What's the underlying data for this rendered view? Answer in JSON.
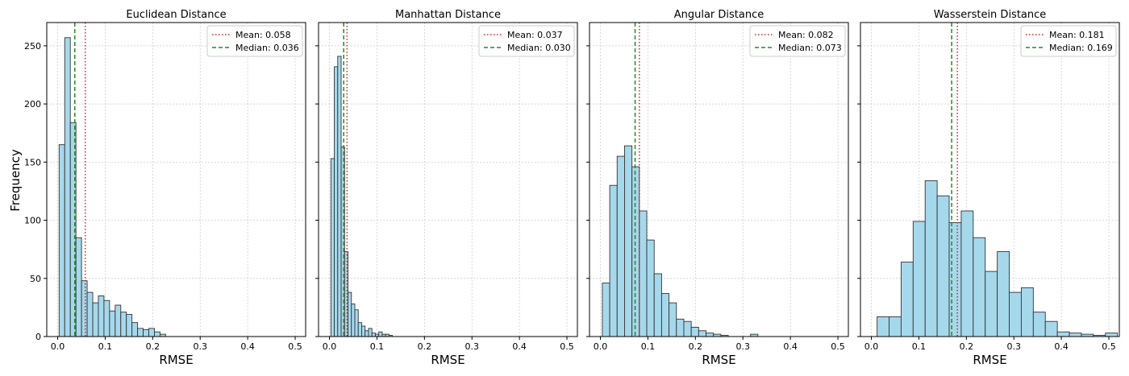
{
  "chart_data": [
    {
      "type": "bar",
      "title": "Euclidean Distance",
      "xlabel": "RMSE",
      "ylabel": "Frequency",
      "xlim": [
        -0.023,
        0.522
      ],
      "ylim": [
        0,
        270
      ],
      "xticks": [
        0.0,
        0.1,
        0.2,
        0.3,
        0.4,
        0.5
      ],
      "yticks": [
        0,
        50,
        100,
        150,
        200,
        250
      ],
      "bin_start": 0.003,
      "bin_width": 0.0118,
      "values": [
        165,
        257,
        184,
        85,
        48,
        38,
        29,
        35,
        31,
        22,
        27,
        21,
        19,
        12,
        7,
        6,
        7,
        4,
        2
      ],
      "bar_color": "#a6d8ec",
      "edge_color": "#333333",
      "grid": true,
      "legend_placement": "top-right",
      "stats": [
        {
          "label": "Mean: 0.058",
          "value": 0.058,
          "color": "#dd2222",
          "style": "dotted"
        },
        {
          "label": "Median: 0.036",
          "value": 0.036,
          "color": "#228b22",
          "style": "dashed"
        }
      ]
    },
    {
      "type": "bar",
      "title": "Manhattan Distance",
      "xlabel": "RMSE",
      "ylabel": "",
      "xlim": [
        -0.023,
        0.522
      ],
      "ylim": [
        0,
        270
      ],
      "xticks": [
        0.0,
        0.1,
        0.2,
        0.3,
        0.4,
        0.5
      ],
      "yticks": [
        0,
        50,
        100,
        150,
        200,
        250
      ],
      "bin_start": 0.003,
      "bin_width": 0.0072,
      "values": [
        153,
        232,
        241,
        163,
        73,
        38,
        28,
        23,
        12,
        9,
        5,
        7,
        3,
        2,
        4,
        2,
        2,
        1
      ],
      "bar_color": "#a6d8ec",
      "edge_color": "#333333",
      "grid": true,
      "legend_placement": "top-right",
      "stats": [
        {
          "label": "Mean: 0.037",
          "value": 0.037,
          "color": "#dd2222",
          "style": "dotted"
        },
        {
          "label": "Median: 0.030",
          "value": 0.03,
          "color": "#228b22",
          "style": "dashed"
        }
      ]
    },
    {
      "type": "bar",
      "title": "Angular Distance",
      "xlabel": "RMSE",
      "ylabel": "",
      "xlim": [
        -0.023,
        0.522
      ],
      "ylim": [
        0,
        270
      ],
      "xticks": [
        0.0,
        0.1,
        0.2,
        0.3,
        0.4,
        0.5
      ],
      "yticks": [
        0,
        50,
        100,
        150,
        200,
        250
      ],
      "bin_start": 0.004,
      "bin_width": 0.0156,
      "values": [
        46,
        130,
        155,
        164,
        146,
        108,
        83,
        54,
        37,
        29,
        15,
        13,
        8,
        5,
        3,
        2,
        1,
        0,
        0,
        0,
        2
      ],
      "bar_color": "#a6d8ec",
      "edge_color": "#333333",
      "grid": true,
      "legend_placement": "top-right",
      "stats": [
        {
          "label": "Mean: 0.082",
          "value": 0.082,
          "color": "#dd2222",
          "style": "dotted"
        },
        {
          "label": "Median: 0.073",
          "value": 0.073,
          "color": "#228b22",
          "style": "dashed"
        }
      ]
    },
    {
      "type": "bar",
      "title": "Wasserstein Distance",
      "xlabel": "RMSE",
      "ylabel": "",
      "xlim": [
        -0.023,
        0.522
      ],
      "ylim": [
        0,
        270
      ],
      "xticks": [
        0.0,
        0.1,
        0.2,
        0.3,
        0.4,
        0.5
      ],
      "yticks": [
        0,
        50,
        100,
        150,
        200,
        250
      ],
      "bin_start": 0.012,
      "bin_width": 0.0253,
      "values": [
        17,
        17,
        64,
        99,
        134,
        121,
        98,
        108,
        85,
        56,
        73,
        38,
        42,
        21,
        13,
        4,
        3,
        2,
        1,
        3
      ],
      "bar_color": "#a6d8ec",
      "edge_color": "#333333",
      "grid": true,
      "legend_placement": "top-right",
      "stats": [
        {
          "label": "Mean: 0.181",
          "value": 0.181,
          "color": "#dd2222",
          "style": "dotted"
        },
        {
          "label": "Median: 0.169",
          "value": 0.169,
          "color": "#228b22",
          "style": "dashed"
        }
      ]
    }
  ]
}
